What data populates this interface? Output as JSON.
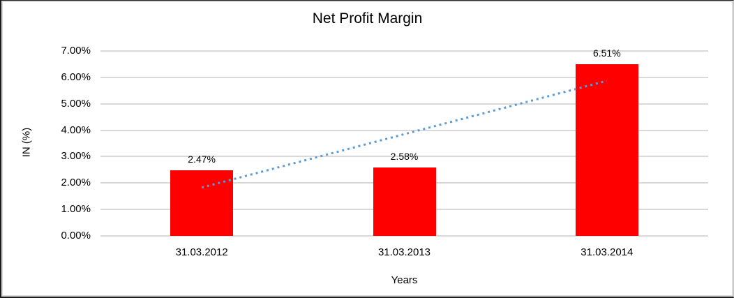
{
  "chart_data": {
    "type": "bar",
    "title": "Net Profit Margin",
    "xlabel": "Years",
    "ylabel": "IN (%)",
    "categories": [
      "31.03.2012",
      "31.03.2013",
      "31.03.2014"
    ],
    "values": [
      2.47,
      2.58,
      6.51
    ],
    "data_labels": [
      "2.47%",
      "2.58%",
      "6.51%"
    ],
    "ylim": [
      0,
      7
    ],
    "ytick_step": 1,
    "ytick_labels": [
      "0.00%",
      "1.00%",
      "2.00%",
      "3.00%",
      "4.00%",
      "5.00%",
      "6.00%",
      "7.00%"
    ],
    "grid": true,
    "legend_position": "none",
    "colors": {
      "bar": "#FF0000",
      "trendline": "#5B9BD5",
      "gridline": "#D9D9D9",
      "text": "#000000"
    },
    "trendline": {
      "type": "linear",
      "style": "dotted",
      "start": {
        "category_index": 0,
        "value": 1.83
      },
      "end": {
        "category_index": 2,
        "value": 5.87
      }
    }
  }
}
